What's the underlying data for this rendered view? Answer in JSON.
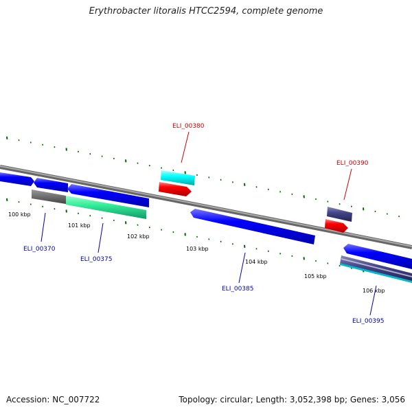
{
  "title": "Erythrobacter litoralis HTCC2594, complete genome",
  "footer": {
    "accession": "Accession: NC_007722",
    "summary": "Topology: circular; Length: 3,052,398 bp; Genes: 3,056"
  },
  "scale": {
    "ticks": [
      "100 kbp",
      "101 kbp",
      "102 kbp",
      "103 kbp",
      "104 kbp",
      "105 kbp",
      "106 kbp"
    ]
  },
  "genes": [
    {
      "label": "ELI_00370",
      "color": "#0000aa"
    },
    {
      "label": "ELI_00375",
      "color": "#0000aa"
    },
    {
      "label": "ELI_00380",
      "color": "#cc0000"
    },
    {
      "label": "ELI_00385",
      "color": "#0000aa"
    },
    {
      "label": "ELI_00390",
      "color": "#cc0000"
    },
    {
      "label": "ELI_00395",
      "color": "#0000aa"
    }
  ],
  "colors": {
    "backbone": "#888888",
    "forward_cds": "#ff0000",
    "reverse_cds": "#0000ff",
    "ticks": "#006600"
  }
}
